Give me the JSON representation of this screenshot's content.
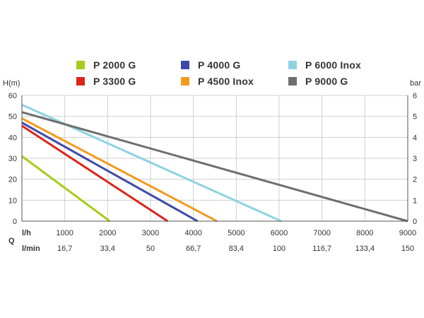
{
  "chart_data": {
    "type": "line",
    "title": "",
    "ylabel": "H(m)",
    "y2label": "bar",
    "xlabel_symbol": "Q",
    "xunit_primary": "l/h",
    "xunit_secondary": "l/min",
    "xlim": [
      0,
      9000
    ],
    "ylim": [
      0,
      60
    ],
    "y2lim": [
      0,
      6
    ],
    "grid": true,
    "legend_position": "top",
    "x_ticks": [
      1000,
      2000,
      3000,
      4000,
      5000,
      6000,
      7000,
      8000,
      9000
    ],
    "x_ticks_lmin": [
      "16,7",
      "33,4",
      "50",
      "66,7",
      "83,4",
      "100",
      "116,7",
      "133,4",
      "150"
    ],
    "y_ticks": [
      0,
      10,
      20,
      30,
      40,
      50,
      60
    ],
    "y2_ticks": [
      0,
      1,
      2,
      3,
      4,
      5,
      6
    ],
    "series": [
      {
        "name": "P 2000 G",
        "color": "#a6cc1c",
        "x": [
          0,
          2050
        ],
        "y": [
          31,
          0
        ]
      },
      {
        "name": "P 3300 G",
        "color": "#d9261c",
        "x": [
          0,
          3400
        ],
        "y": [
          45.5,
          0
        ]
      },
      {
        "name": "P 4000 G",
        "color": "#3f4aa8",
        "x": [
          0,
          4100
        ],
        "y": [
          47,
          0
        ]
      },
      {
        "name": "P 4500 Inox",
        "color": "#f39a1e",
        "x": [
          0,
          4550
        ],
        "y": [
          49,
          0
        ]
      },
      {
        "name": "P 6000 Inox",
        "color": "#8ed3e3",
        "x": [
          0,
          6050
        ],
        "y": [
          55.5,
          0
        ]
      },
      {
        "name": "P 9000 G",
        "color": "#6e6e6e",
        "x": [
          0,
          9000
        ],
        "y": [
          52,
          0
        ]
      }
    ]
  }
}
